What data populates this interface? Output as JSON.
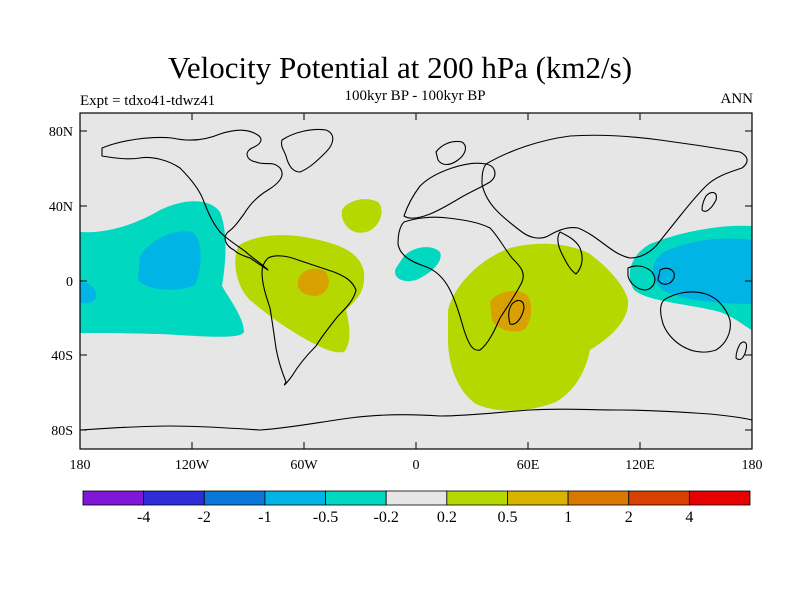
{
  "header": {
    "title": "Velocity Potential at 200 hPa (km2/s)",
    "subtitle": "100kyr BP - 100kyr BP",
    "experiment": "Expt = tdxo41-tdwz41",
    "season": "ANN"
  },
  "axes": {
    "lat_labels": [
      "80N",
      "40N",
      "0",
      "40S",
      "80S"
    ],
    "lon_labels": [
      "180",
      "120W",
      "60W",
      "0",
      "60E",
      "120E",
      "180"
    ]
  },
  "colorbar": {
    "colors": [
      "#7f17d8",
      "#2e2ed8",
      "#0a78d8",
      "#00b4e6",
      "#00d8c0",
      "#e6e6e6",
      "#b4d800",
      "#d8b400",
      "#d87800",
      "#d84000",
      "#e60000"
    ],
    "labels": [
      "-4",
      "-2",
      "-1",
      "-0.5",
      "-0.2",
      "0.2",
      "0.5",
      "1",
      "2",
      "4"
    ]
  },
  "map_colors": {
    "ocean": "#e6e6e6",
    "neg_weak": "#00d8c0",
    "neg_mid": "#00b4e6",
    "pos_weak": "#b4d800",
    "pos_mid": "#d8a000"
  }
}
